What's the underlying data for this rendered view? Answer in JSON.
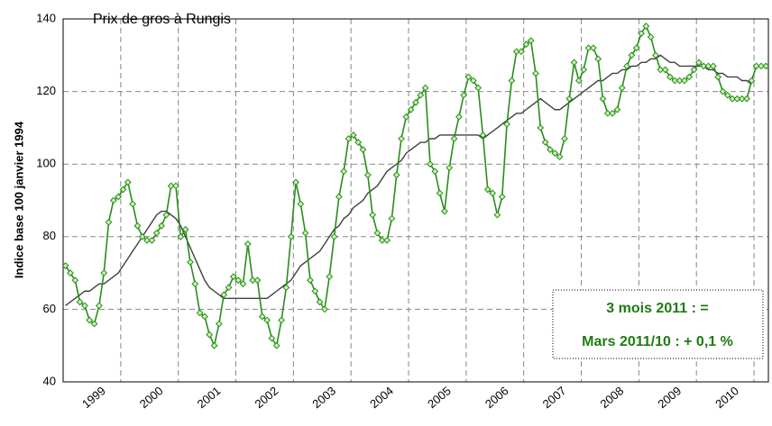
{
  "chart_data": {
    "type": "line",
    "title": "Prix de gros à Rungis",
    "ylabel": "Indice base 100 janvier 1994",
    "annotations": [
      "3 mois 2011 : =",
      "Mars 2011/10 : + 0,1 %"
    ],
    "categories": [
      null,
      null,
      null,
      null,
      null,
      null,
      "1999",
      null,
      null,
      null,
      null,
      null,
      null,
      null,
      null,
      null,
      null,
      null,
      "2000",
      null,
      null,
      null,
      null,
      null,
      null,
      null,
      null,
      null,
      null,
      null,
      "2001",
      null,
      null,
      null,
      null,
      null,
      null,
      null,
      null,
      null,
      null,
      null,
      "2002",
      null,
      null,
      null,
      null,
      null,
      null,
      null,
      null,
      null,
      null,
      null,
      "2003",
      null,
      null,
      null,
      null,
      null,
      null,
      null,
      null,
      null,
      null,
      null,
      "2004",
      null,
      null,
      null,
      null,
      null,
      null,
      null,
      null,
      null,
      null,
      null,
      "2005",
      null,
      null,
      null,
      null,
      null,
      null,
      null,
      null,
      null,
      null,
      null,
      "2006",
      null,
      null,
      null,
      null,
      null,
      null,
      null,
      null,
      null,
      null,
      null,
      "2007",
      null,
      null,
      null,
      null,
      null,
      null,
      null,
      null,
      null,
      null,
      null,
      "2008",
      null,
      null,
      null,
      null,
      null,
      null,
      null,
      null,
      null,
      null,
      null,
      "2009",
      null,
      null,
      null,
      null,
      null,
      null,
      null,
      null,
      null,
      null,
      null,
      "2010",
      null,
      null,
      null,
      null,
      null,
      null,
      null,
      null
    ],
    "series": [
      {
        "color": "#2a8c1e",
        "marker_fill": "#c8f5b0",
        "markers": true,
        "values": [
          72,
          70,
          68,
          62,
          61,
          57,
          56,
          61,
          70,
          84,
          90,
          91,
          93,
          95,
          89,
          83,
          80,
          79,
          79,
          81,
          83,
          86,
          94,
          94,
          80,
          82,
          73,
          67,
          59,
          58,
          53,
          50,
          56,
          64,
          66,
          69,
          68,
          67,
          78,
          68,
          68,
          58,
          57,
          52,
          50,
          57,
          66,
          80,
          95,
          89,
          81,
          68,
          65,
          62,
          60,
          69,
          80,
          91,
          98,
          107,
          108,
          106,
          104,
          97,
          86,
          81,
          79,
          79,
          85,
          97,
          107,
          113,
          115,
          117,
          119,
          121,
          100,
          98,
          92,
          87,
          99,
          107,
          113,
          119,
          124,
          123,
          121,
          108,
          93,
          92,
          86,
          91,
          111,
          123,
          131,
          131,
          133,
          134,
          125,
          110,
          106,
          104,
          103,
          102,
          107,
          118,
          128,
          123,
          126,
          132,
          132,
          129,
          118,
          114,
          114,
          115,
          121,
          127,
          130,
          132,
          136,
          138,
          135,
          130,
          126,
          126,
          124,
          123,
          123,
          123,
          124,
          126,
          128,
          127,
          127,
          127,
          124,
          120,
          119,
          118,
          118,
          118,
          118,
          123,
          127,
          127,
          127
        ]
      },
      {
        "color": "#404040",
        "markers": false,
        "values": [
          61,
          62,
          63,
          64,
          65,
          65,
          66,
          67,
          67,
          68,
          69,
          70,
          72,
          74,
          76,
          78,
          80,
          82,
          84,
          86,
          87,
          87,
          86,
          85,
          83,
          80,
          77,
          74,
          71,
          68,
          66,
          65,
          64,
          63,
          63,
          63,
          63,
          63,
          63,
          63,
          63,
          63,
          63,
          64,
          65,
          66,
          67,
          68,
          70,
          72,
          73,
          74,
          75,
          76,
          78,
          80,
          82,
          83,
          85,
          86,
          88,
          89,
          90,
          92,
          93,
          94,
          96,
          98,
          99,
          100,
          101,
          103,
          104,
          105,
          106,
          106,
          107,
          107,
          108,
          108,
          108,
          108,
          108,
          108,
          108,
          108,
          108,
          107,
          108,
          109,
          110,
          111,
          112,
          113,
          114,
          114,
          115,
          116,
          117,
          118,
          117,
          116,
          115,
          115,
          116,
          117,
          118,
          119,
          120,
          121,
          122,
          123,
          123,
          124,
          125,
          125,
          126,
          126,
          127,
          127,
          128,
          128,
          129,
          129,
          130,
          129,
          128,
          128,
          127,
          127,
          127,
          127,
          127,
          127,
          126,
          126,
          125,
          125,
          124,
          124,
          124,
          123,
          123,
          122,
          null,
          null,
          null
        ]
      }
    ],
    "ylim": [
      40,
      140
    ],
    "yticks": [
      40,
      60,
      80,
      100,
      120,
      140
    ],
    "grid": true
  }
}
